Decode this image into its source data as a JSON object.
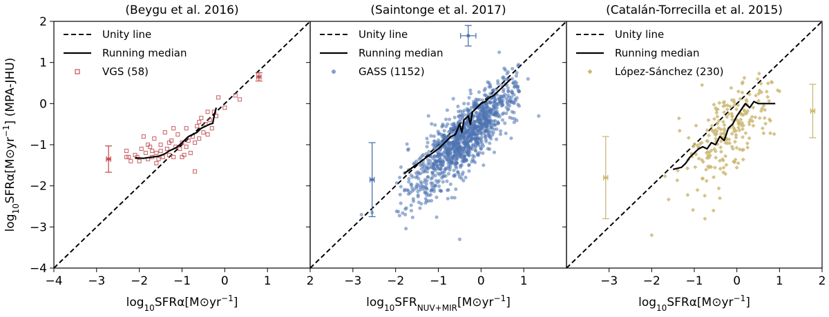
{
  "chart_data": [
    {
      "type": "scatter",
      "title": "(Beygu et al. 2016)",
      "xlabel": "log10SFRα[M⊙yr−1]",
      "ylabel": "log10SFRα[M⊙yr−1] (MPA-JHU)",
      "xlim": [
        -4,
        2
      ],
      "ylim": [
        -4,
        2
      ],
      "xticks": [
        -4,
        -3,
        -2,
        -1,
        0,
        1,
        2
      ],
      "yticks": [
        -4,
        -3,
        -2,
        -1,
        0,
        1,
        2
      ],
      "legend": {
        "placement": "top-left",
        "unity": "Unity line",
        "median": "Running median",
        "sample": "VGS (58)"
      },
      "marker": "square-open",
      "color": "#c44e52",
      "points": [
        [
          -2.3,
          -1.15
        ],
        [
          -2.25,
          -1.3
        ],
        [
          -2.2,
          -1.4
        ],
        [
          -2.1,
          -1.25
        ],
        [
          -2.0,
          -1.4
        ],
        [
          -1.9,
          -0.8
        ],
        [
          -1.85,
          -1.2
        ],
        [
          -1.8,
          -1.35
        ],
        [
          -1.75,
          -1.05
        ],
        [
          -1.7,
          -1.3
        ],
        [
          -1.65,
          -0.85
        ],
        [
          -1.6,
          -1.2
        ],
        [
          -1.55,
          -1.35
        ],
        [
          -1.5,
          -1.0
        ],
        [
          -1.45,
          -1.3
        ],
        [
          -1.4,
          -0.7
        ],
        [
          -1.35,
          -1.1
        ],
        [
          -1.3,
          -1.25
        ],
        [
          -1.25,
          -0.9
        ],
        [
          -1.2,
          -1.3
        ],
        [
          -1.15,
          -1.05
        ],
        [
          -1.1,
          -0.75
        ],
        [
          -1.05,
          -1.1
        ],
        [
          -1.0,
          -0.95
        ],
        [
          -0.95,
          -1.25
        ],
        [
          -0.9,
          -0.6
        ],
        [
          -0.85,
          -0.9
        ],
        [
          -0.8,
          -1.2
        ],
        [
          -0.75,
          -0.8
        ],
        [
          -0.7,
          -1.65
        ],
        [
          -0.65,
          -0.55
        ],
        [
          -0.6,
          -0.85
        ],
        [
          -0.55,
          -0.35
        ],
        [
          -0.5,
          -0.7
        ],
        [
          -0.45,
          -0.5
        ],
        [
          -0.4,
          -0.75
        ],
        [
          -0.35,
          -0.4
        ],
        [
          -0.3,
          -0.6
        ],
        [
          -0.25,
          -0.2
        ],
        [
          -0.2,
          -0.3
        ],
        [
          -0.15,
          0.15
        ],
        [
          0.0,
          -0.1
        ],
        [
          0.25,
          0.2
        ],
        [
          0.35,
          0.1
        ],
        [
          -1.95,
          -1.1
        ],
        [
          -1.6,
          -1.45
        ],
        [
          -1.3,
          -0.95
        ],
        [
          -1.0,
          -1.3
        ],
        [
          -0.7,
          -0.95
        ],
        [
          -2.3,
          -1.3
        ],
        [
          -1.8,
          -1.0
        ],
        [
          -1.5,
          -1.15
        ],
        [
          -1.2,
          -0.6
        ],
        [
          -0.9,
          -1.05
        ],
        [
          -0.6,
          -0.45
        ],
        [
          -0.4,
          -0.2
        ],
        [
          -2.05,
          -1.3
        ],
        [
          -1.7,
          -1.15
        ]
      ],
      "median": [
        [
          -2.1,
          -1.32
        ],
        [
          -1.9,
          -1.33
        ],
        [
          -1.7,
          -1.3
        ],
        [
          -1.55,
          -1.28
        ],
        [
          -1.4,
          -1.22
        ],
        [
          -1.3,
          -1.15
        ],
        [
          -1.15,
          -1.08
        ],
        [
          -1.05,
          -1.0
        ],
        [
          -0.95,
          -0.9
        ],
        [
          -0.85,
          -0.8
        ],
        [
          -0.75,
          -0.75
        ],
        [
          -0.65,
          -0.7
        ],
        [
          -0.55,
          -0.6
        ],
        [
          -0.45,
          -0.55
        ],
        [
          -0.35,
          -0.5
        ],
        [
          -0.28,
          -0.48
        ],
        [
          -0.25,
          -0.3
        ],
        [
          -0.2,
          -0.1
        ]
      ],
      "error_bars": [
        {
          "x": -2.72,
          "y": -1.35,
          "xerr": 0.05,
          "yerr": 0.32
        },
        {
          "x": 0.8,
          "y": 0.65,
          "xerr": 0.05,
          "yerr": 0.1
        }
      ]
    },
    {
      "type": "scatter",
      "title": "(Saintonge et al. 2017)",
      "xlabel": "log10SFRNUV+MIR[M⊙yr−1]",
      "xlim": [
        -4,
        2
      ],
      "ylim": [
        -4,
        2
      ],
      "xticks": [
        -3,
        -2,
        -1,
        0,
        1
      ],
      "legend": {
        "placement": "top-left",
        "unity": "Unity line",
        "median": "Running median",
        "sample": "GASS (1152)"
      },
      "marker": "circle",
      "color": "#4c72b0",
      "generated_count": 1152,
      "outliers": [
        [
          -2.55,
          -2.65
        ],
        [
          -0.5,
          -3.3
        ],
        [
          1.35,
          -0.3
        ],
        [
          -2.8,
          -2.7
        ],
        [
          1.1,
          0.6
        ]
      ],
      "median": [
        [
          -1.8,
          -1.7
        ],
        [
          -1.6,
          -1.55
        ],
        [
          -1.4,
          -1.4
        ],
        [
          -1.2,
          -1.25
        ],
        [
          -1.0,
          -1.1
        ],
        [
          -0.9,
          -1.0
        ],
        [
          -0.8,
          -0.9
        ],
        [
          -0.7,
          -0.8
        ],
        [
          -0.6,
          -0.75
        ],
        [
          -0.5,
          -0.5
        ],
        [
          -0.45,
          -0.7
        ],
        [
          -0.4,
          -0.4
        ],
        [
          -0.3,
          -0.3
        ],
        [
          -0.25,
          -0.5
        ],
        [
          -0.2,
          -0.2
        ],
        [
          -0.1,
          -0.1
        ],
        [
          0.0,
          0.0
        ],
        [
          0.1,
          0.05
        ],
        [
          0.2,
          0.15
        ],
        [
          0.3,
          0.2
        ],
        [
          0.4,
          0.3
        ],
        [
          0.5,
          0.4
        ],
        [
          0.6,
          0.5
        ],
        [
          0.7,
          0.6
        ]
      ],
      "error_bars": [
        {
          "x": -2.55,
          "y": -1.85,
          "xerr": 0.05,
          "yerr": 0.9
        },
        {
          "x": -0.3,
          "y": 1.65,
          "xerr": 0.18,
          "yerr": 0.25
        }
      ]
    },
    {
      "type": "scatter",
      "title": "(Catalán-Torrecilla et al. 2015)",
      "xlabel": "log10SFRα[M⊙yr−1]",
      "xlim": [
        -4,
        2
      ],
      "ylim": [
        -4,
        2
      ],
      "xticks": [
        -3,
        -2,
        -1,
        0,
        1,
        2
      ],
      "legend": {
        "placement": "top-left",
        "unity": "Unity line",
        "median": "Running median",
        "sample": "López-Sánchez (230)"
      },
      "marker": "diamond",
      "color": "#ccb974",
      "generated_count": 230,
      "outliers": [
        [
          -2.0,
          -3.2
        ],
        [
          -0.75,
          -2.8
        ],
        [
          -0.55,
          -2.6
        ],
        [
          1.0,
          0.3
        ],
        [
          -0.4,
          -2.3
        ]
      ],
      "median": [
        [
          -1.5,
          -1.6
        ],
        [
          -1.3,
          -1.55
        ],
        [
          -1.2,
          -1.45
        ],
        [
          -1.1,
          -1.3
        ],
        [
          -1.0,
          -1.2
        ],
        [
          -0.9,
          -1.1
        ],
        [
          -0.8,
          -1.05
        ],
        [
          -0.7,
          -1.1
        ],
        [
          -0.6,
          -0.95
        ],
        [
          -0.5,
          -1.0
        ],
        [
          -0.4,
          -0.8
        ],
        [
          -0.3,
          -0.9
        ],
        [
          -0.2,
          -0.6
        ],
        [
          -0.1,
          -0.5
        ],
        [
          0.0,
          -0.3
        ],
        [
          0.1,
          -0.15
        ],
        [
          0.2,
          0.0
        ],
        [
          0.3,
          -0.1
        ],
        [
          0.4,
          0.05
        ],
        [
          0.5,
          0.0
        ],
        [
          0.6,
          0.0
        ],
        [
          0.9,
          0.0
        ]
      ],
      "error_bars": [
        {
          "x": -3.08,
          "y": -1.8,
          "xerr": 0.05,
          "yerr": 1.0
        },
        {
          "x": 1.78,
          "y": -0.18,
          "xerr": 0.05,
          "yerr": 0.65
        }
      ]
    }
  ]
}
